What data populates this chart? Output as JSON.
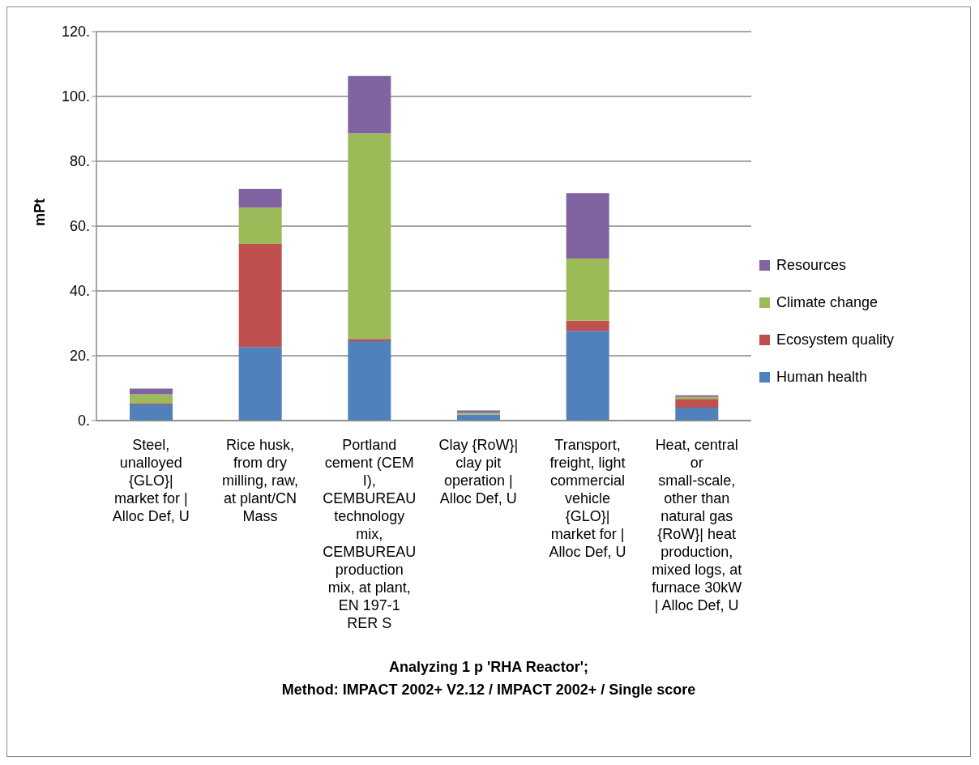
{
  "chart_data": {
    "type": "bar",
    "stacked": true,
    "annotations": [
      "Analyzing 1 p 'RHA Reactor';",
      "Method: IMPACT 2002+ V2.12 / IMPACT 2002+ / Single score"
    ],
    "ylabel": "mPt",
    "categories": [
      "Steel, unalloyed {GLO}| market for | Alloc Def, U",
      "Rice husk, from dry milling, raw, at plant/CN Mass",
      "Portland cement (CEM I), CEMBUREAU technology mix, CEMBUREAU production mix, at plant, EN 197-1 RER S",
      "Clay {RoW}| clay pit operation | Alloc Def, U",
      "Transport, freight, light commercial vehicle {GLO}| market for | Alloc Def, U",
      "Heat, central or small-scale, other than natural gas {RoW}| heat production, mixed logs, at furnace 30kW | Alloc Def, U"
    ],
    "series": [
      {
        "name": "Human health",
        "color": "#4f81bd",
        "values": [
          5.0,
          22.7,
          24.5,
          1.8,
          27.7,
          4.0
        ]
      },
      {
        "name": "Ecosystem quality",
        "color": "#c0504d",
        "values": [
          0.4,
          31.8,
          0.7,
          null,
          3.1,
          2.7
        ]
      },
      {
        "name": "Climate change",
        "color": "#9bbb59",
        "values": [
          2.7,
          11.2,
          63.4,
          0.6,
          19.2,
          0.6
        ]
      },
      {
        "name": "Resources",
        "color": "#8064a2",
        "values": [
          1.8,
          5.8,
          17.7,
          0.7,
          20.2,
          0.5
        ]
      }
    ],
    "ylim": [
      0,
      120
    ],
    "yticks": [
      {
        "value": 0,
        "label": "0."
      },
      {
        "value": 20,
        "label": "20."
      },
      {
        "value": 40,
        "label": "40."
      },
      {
        "value": 60,
        "label": "60."
      },
      {
        "value": 80,
        "label": "80."
      },
      {
        "value": 100,
        "label": "100."
      },
      {
        "value": 120,
        "label": "120."
      }
    ],
    "grid": "y",
    "legend": "right"
  }
}
